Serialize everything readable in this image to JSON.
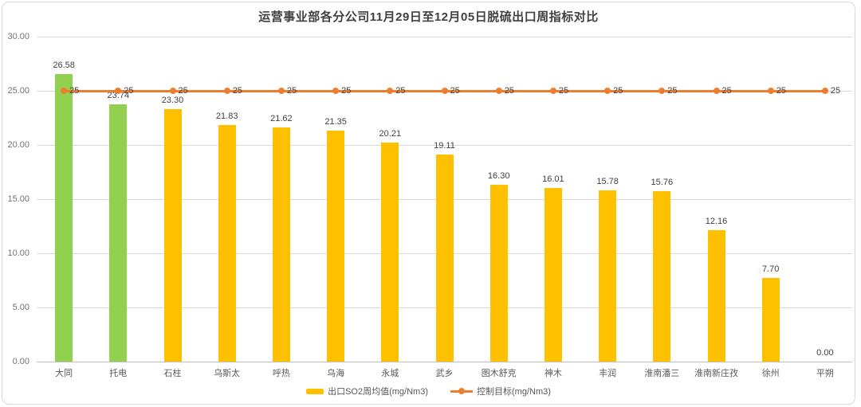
{
  "chart": {
    "title": "运营事业部各分公司11月29日至12月05日脱硫出口周指标对比"
  },
  "colors": {
    "bar_default": "#FFC000",
    "bar_highlight": "#92D050",
    "target_line": "#ED7D31",
    "gridline": "#D9D9D9",
    "title_text": "#404040",
    "axis_text": "#737373"
  },
  "chart_data": {
    "type": "bar",
    "title": "运营事业部各分公司11月29日至12月05日脱硫出口周指标对比",
    "categories": [
      "大同",
      "托电",
      "石柱",
      "乌斯太",
      "呼热",
      "乌海",
      "永城",
      "武乡",
      "图木舒克",
      "神木",
      "丰润",
      "淮南潘三",
      "淮南新庄孜",
      "徐州",
      "平朔"
    ],
    "series": [
      {
        "name": "出口SO2周均值(mg/Nm3)",
        "type": "bar",
        "values": [
          26.58,
          23.74,
          23.3,
          21.83,
          21.62,
          21.35,
          20.21,
          19.11,
          16.3,
          16.01,
          15.78,
          15.76,
          12.16,
          7.7,
          0.0
        ],
        "value_labels": [
          "26.58",
          "23.74",
          "23.30",
          "21.83",
          "21.62",
          "21.35",
          "20.21",
          "19.11",
          "16.30",
          "16.01",
          "15.78",
          "15.76",
          "12.16",
          "7.70",
          "0.00"
        ],
        "color": "#FFC000",
        "highlight_color": "#92D050",
        "highlight_indices": [
          0,
          1
        ]
      },
      {
        "name": "控制目标(mg/Nm3)",
        "type": "line",
        "values": [
          25,
          25,
          25,
          25,
          25,
          25,
          25,
          25,
          25,
          25,
          25,
          25,
          25,
          25,
          25
        ],
        "point_label": "25",
        "color": "#ED7D31"
      }
    ],
    "ylim": [
      0,
      30
    ],
    "yticks": [
      {
        "value": 0,
        "label": "0.00"
      },
      {
        "value": 5,
        "label": "5.00"
      },
      {
        "value": 10,
        "label": "10.00"
      },
      {
        "value": 15,
        "label": "15.00"
      },
      {
        "value": 20,
        "label": "20.00"
      },
      {
        "value": 25,
        "label": "25.00"
      },
      {
        "value": 30,
        "label": "30.00"
      }
    ],
    "grid": true,
    "legend_position": "bottom"
  }
}
